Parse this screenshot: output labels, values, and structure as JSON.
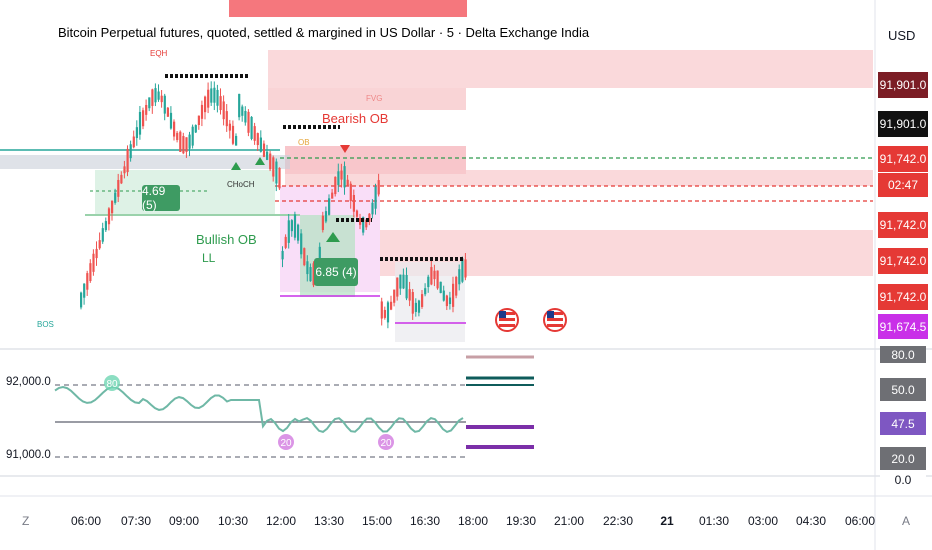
{
  "header": {
    "title": "Bitcoin Perpetual futures, quoted, settled & margined in US Dollar · 5 · Delta Exchange India",
    "currency": "USD"
  },
  "price_axis": {
    "tags": [
      {
        "label": "91,901.0",
        "color": "#7b1d25"
      },
      {
        "label": "91,901.0",
        "color": "#111111"
      },
      {
        "label": "91,742.0",
        "color": "#e53935"
      },
      {
        "label": "02:47",
        "color": "#e53935"
      },
      {
        "label": "91,742.0",
        "color": "#e53935"
      },
      {
        "label": "91,742.0",
        "color": "#e53935"
      },
      {
        "label": "91,742.0",
        "color": "#e53935"
      },
      {
        "label": "91,674.5",
        "color": "#c930e8"
      }
    ]
  },
  "indicator": {
    "left_labels": [
      "92,000.0",
      "91,000.0"
    ],
    "right_tags": [
      {
        "label": "80.0",
        "color": "#6e6f74"
      },
      {
        "label": "50.0",
        "color": "#6e6f74"
      },
      {
        "label": "47.5",
        "color": "#7e57c2"
      },
      {
        "label": "20.0",
        "color": "#6e6f74"
      },
      {
        "label": "0.0",
        "color": "#ffffff",
        "text": "#131722"
      }
    ],
    "markers": [
      "80",
      "20",
      "20"
    ]
  },
  "annotations": {
    "bearish_ob": "Bearish OB",
    "bullish_ob": "Bullish OB",
    "ll": "LL",
    "eqh": "EQH",
    "fvg": "FVG",
    "choch": "CHoCH",
    "bos": "BOS",
    "ob": "OB",
    "count_1": "4.69 (5)",
    "count_2": "6.85 (4)"
  },
  "time_axis": {
    "labels": [
      "06:00",
      "07:30",
      "09:00",
      "10:30",
      "12:00",
      "13:30",
      "15:00",
      "16:30",
      "18:00",
      "19:30",
      "21:00",
      "22:30",
      "21",
      "01:30",
      "03:00",
      "04:30",
      "06:00"
    ],
    "left_icon": "Z",
    "right_icon": "A"
  },
  "colors": {
    "up": "#26a69a",
    "down": "#ef5350",
    "bear_zone": "#f8c9cc",
    "bull_zone": "#c8ead6",
    "indicator_line": "#6fb8a6",
    "indicator_line2": "#8c6bd4"
  }
}
